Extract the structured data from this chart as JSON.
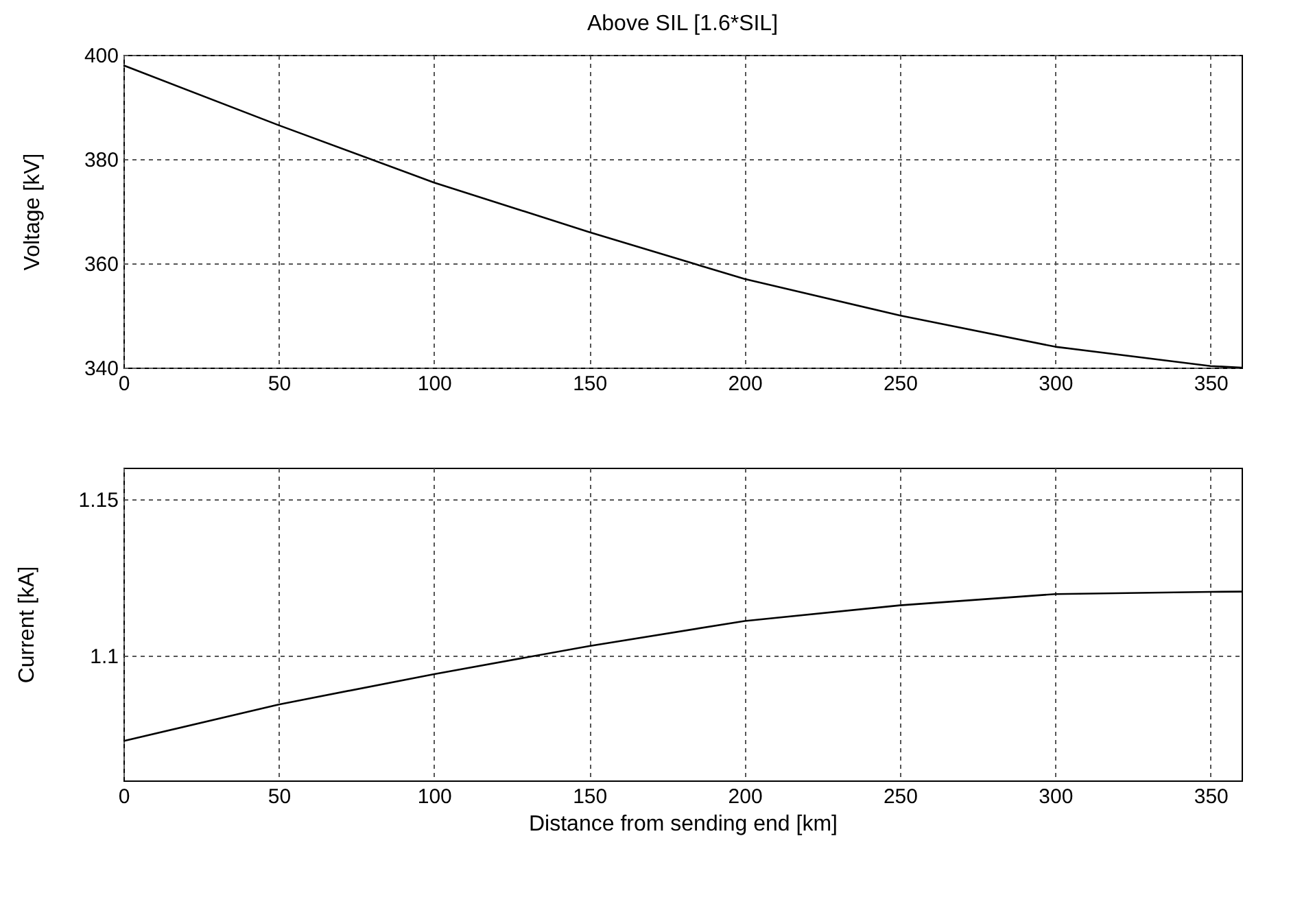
{
  "chart_data": [
    {
      "type": "line",
      "title": "Above SIL [1.6*SIL]",
      "ylabel": "Voltage [kV]",
      "x": [
        0,
        50,
        100,
        150,
        200,
        250,
        300,
        350,
        360
      ],
      "series": [
        {
          "color": "#000000",
          "values": [
            398,
            386.5,
            375.5,
            366,
            357,
            350,
            344,
            340.3,
            340
          ]
        }
      ],
      "xlim": [
        0,
        360
      ],
      "xticks": [
        0,
        50,
        100,
        150,
        200,
        250,
        300,
        350
      ],
      "ylim": [
        340,
        400
      ],
      "yticks": [
        340,
        360,
        380,
        400
      ],
      "grid": true,
      "line_style": "solid"
    },
    {
      "type": "line",
      "xlabel": "Distance from sending end [km]",
      "ylabel": "Current [kA]",
      "x": [
        0,
        50,
        100,
        150,
        200,
        250,
        300,
        350,
        360
      ],
      "series": [
        {
          "color": "#000000",
          "values": [
            1.0726,
            1.0843,
            1.094,
            1.103,
            1.111,
            1.116,
            1.1196,
            1.1203,
            1.1204
          ]
        }
      ],
      "xlim": [
        0,
        360
      ],
      "xticks": [
        0,
        50,
        100,
        150,
        200,
        250,
        300,
        350
      ],
      "ylim": [
        1.06,
        1.16
      ],
      "yticks": [
        1.1,
        1.15
      ],
      "grid": true,
      "line_style": "solid"
    }
  ]
}
